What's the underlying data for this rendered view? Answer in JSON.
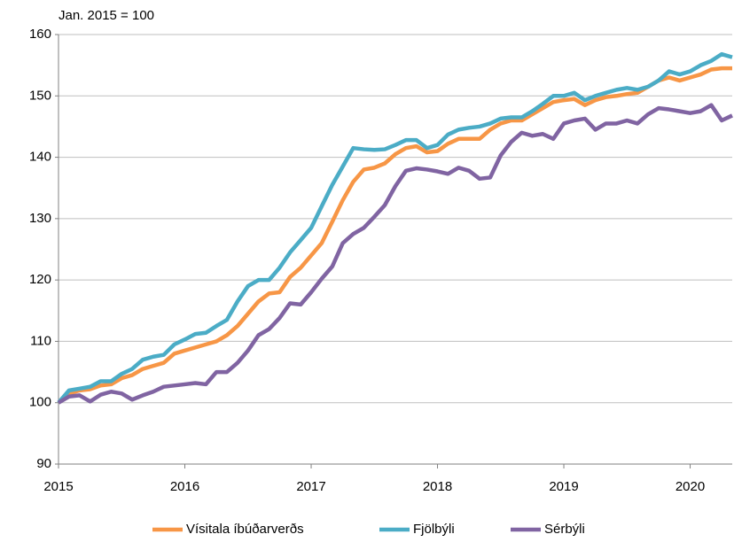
{
  "chart_data": {
    "type": "line",
    "subtitle": "Jan. 2015 = 100",
    "x": [
      2015,
      2015.083,
      2015.167,
      2015.25,
      2015.333,
      2015.417,
      2015.5,
      2015.583,
      2015.667,
      2015.75,
      2015.833,
      2015.917,
      2016,
      2016.083,
      2016.167,
      2016.25,
      2016.333,
      2016.417,
      2016.5,
      2016.583,
      2016.667,
      2016.75,
      2016.833,
      2016.917,
      2017,
      2017.083,
      2017.167,
      2017.25,
      2017.333,
      2017.417,
      2017.5,
      2017.583,
      2017.667,
      2017.75,
      2017.833,
      2017.917,
      2018,
      2018.083,
      2018.167,
      2018.25,
      2018.333,
      2018.417,
      2018.5,
      2018.583,
      2018.667,
      2018.75,
      2018.833,
      2018.917,
      2019,
      2019.083,
      2019.167,
      2019.25,
      2019.333,
      2019.417,
      2019.5,
      2019.583,
      2019.667,
      2019.75,
      2019.833,
      2019.917,
      2020,
      2020.083,
      2020.167,
      2020.25,
      2020.333
    ],
    "series": [
      {
        "name": "Vísitala íbúðarverðs",
        "color": "#f79646",
        "values": [
          100,
          101.5,
          102,
          102.2,
          102.8,
          103,
          104,
          104.5,
          105.5,
          106,
          106.5,
          108,
          108.5,
          109,
          109.5,
          110,
          111,
          112.5,
          114.5,
          116.5,
          117.8,
          118,
          120.5,
          122,
          124,
          126,
          129.5,
          133,
          136,
          138,
          138.3,
          139,
          140.5,
          141.5,
          141.8,
          140.8,
          141,
          142.2,
          143,
          143,
          143,
          144.5,
          145.5,
          146,
          146,
          147,
          148,
          149,
          149.3,
          149.5,
          148.5,
          149.3,
          149.8,
          150,
          150.3,
          150.5,
          151.5,
          152.5,
          153,
          152.5,
          153,
          153.5,
          154.3,
          154.5,
          154.5
        ]
      },
      {
        "name": "Fjölbýli",
        "color": "#4bacc6",
        "values": [
          100,
          102,
          102.3,
          102.6,
          103.5,
          103.5,
          104.7,
          105.5,
          107,
          107.5,
          107.8,
          109.5,
          110.3,
          111.2,
          111.4,
          112.5,
          113.5,
          116.5,
          119,
          120,
          120,
          122,
          124.5,
          126.5,
          128.5,
          132,
          135.5,
          138.5,
          141.5,
          141.3,
          141.2,
          141.3,
          142,
          142.8,
          142.8,
          141.5,
          142,
          143.7,
          144.5,
          144.8,
          145,
          145.5,
          146.3,
          146.5,
          146.5,
          147.5,
          148.7,
          150,
          150,
          150.5,
          149.3,
          150,
          150.5,
          151,
          151.3,
          151,
          151.5,
          152.5,
          154,
          153.5,
          154,
          155,
          155.7,
          156.8,
          156.3
        ]
      },
      {
        "name": "Sérbýli",
        "color": "#8064a2",
        "values": [
          100,
          101,
          101.2,
          100.2,
          101.3,
          101.8,
          101.5,
          100.5,
          101.2,
          101.8,
          102.6,
          102.8,
          103,
          103.2,
          103,
          105,
          105,
          106.5,
          108.5,
          111,
          112,
          113.8,
          116.2,
          116,
          118,
          120.2,
          122.2,
          126,
          127.5,
          128.5,
          130.3,
          132.2,
          135.3,
          137.8,
          138.2,
          138,
          137.7,
          137.3,
          138.3,
          137.8,
          136.5,
          136.7,
          140.3,
          142.5,
          144,
          143.5,
          143.8,
          143,
          145.5,
          146,
          146.3,
          144.5,
          145.5,
          145.5,
          146,
          145.5,
          147,
          148,
          147.8,
          147.5,
          147.2,
          147.5,
          148.5,
          146,
          146.8
        ]
      }
    ],
    "xlim": [
      2015,
      2020.333
    ],
    "xticks": [
      2015,
      2016,
      2017,
      2018,
      2019,
      2020
    ],
    "ylim": [
      90,
      160
    ],
    "yticks": [
      90,
      100,
      110,
      120,
      130,
      140,
      150,
      160
    ],
    "grid": true,
    "legend": "bottom"
  }
}
